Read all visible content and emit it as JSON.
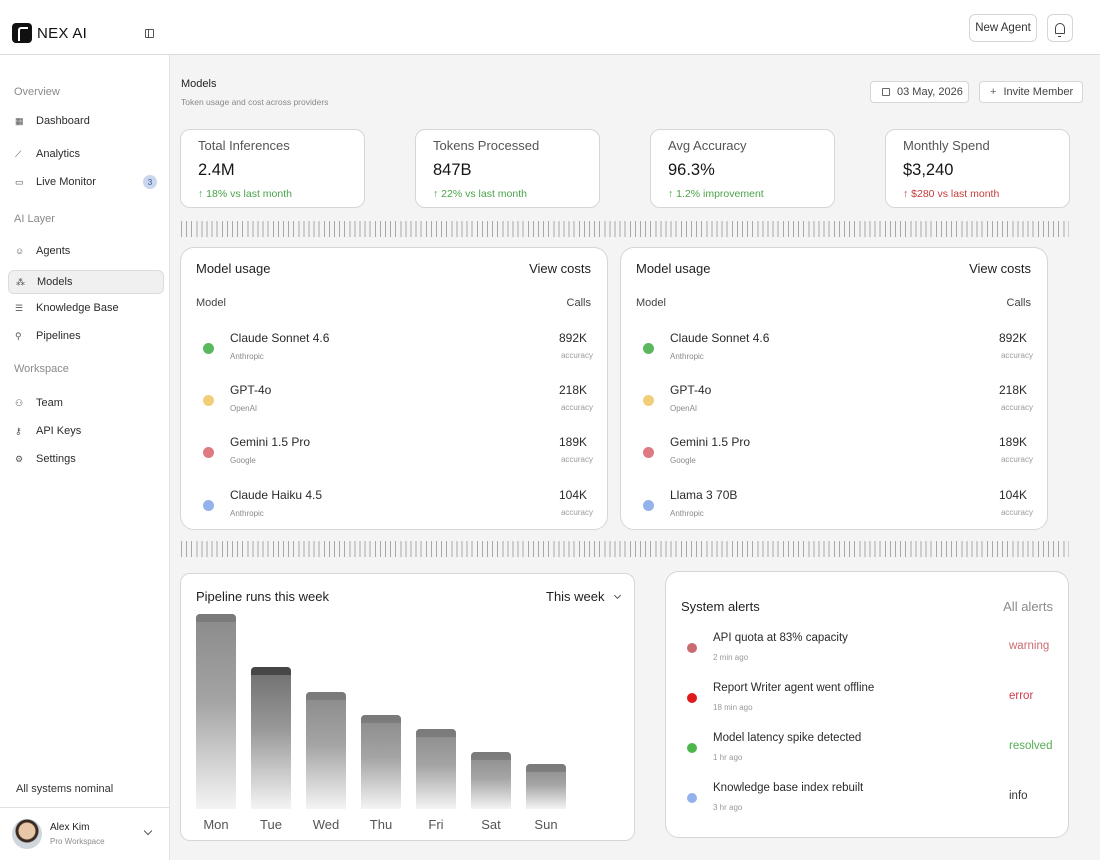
{
  "app": {
    "name": "NEX AI"
  },
  "topbar": {
    "new_agent": "New Agent"
  },
  "sidebar": {
    "sections": [
      {
        "label": "Overview"
      },
      {
        "label": "AI Layer"
      },
      {
        "label": "Workspace"
      }
    ],
    "items": [
      {
        "label": "Dashboard",
        "icon": "grid-icon"
      },
      {
        "label": "Analytics",
        "icon": "chart-line-icon"
      },
      {
        "label": "Live Monitor",
        "icon": "monitor-icon",
        "badge": "3"
      },
      {
        "label": "Agents",
        "icon": "agent-icon"
      },
      {
        "label": "Models",
        "icon": "models-icon"
      },
      {
        "label": "Knowledge Base",
        "icon": "database-icon"
      },
      {
        "label": "Pipelines",
        "icon": "pipeline-icon"
      },
      {
        "label": "Team",
        "icon": "team-icon"
      },
      {
        "label": "API Keys",
        "icon": "key-icon"
      },
      {
        "label": "Settings",
        "icon": "gear-icon"
      }
    ],
    "status": "All systems nominal",
    "user": {
      "name": "Alex Kim",
      "workspace": "Pro Workspace"
    }
  },
  "page": {
    "title": "Models",
    "subtitle": "Token usage and cost across providers",
    "date": "03 May, 2026",
    "invite": "Invite Member"
  },
  "stats": [
    {
      "label": "Total Inferences",
      "value": "2.4M",
      "delta": "↑ 18% vs last month",
      "trend": "up"
    },
    {
      "label": "Tokens Processed",
      "value": "847B",
      "delta": "↑ 22% vs last month",
      "trend": "up"
    },
    {
      "label": "Avg Accuracy",
      "value": "96.3%",
      "delta": "↑ 1.2% improvement",
      "trend": "up"
    },
    {
      "label": "Monthly Spend",
      "value": "$3,240",
      "delta": "↑ $280 vs last month",
      "trend": "down"
    }
  ],
  "usage_cards": [
    {
      "title": "Model usage",
      "link": "View costs",
      "col_model": "Model",
      "col_calls": "Calls",
      "rows": [
        {
          "name": "Claude Sonnet 4.6",
          "provider": "Anthropic",
          "calls": "892K",
          "acc": "accuracy",
          "color": "#5cb85c"
        },
        {
          "name": "GPT-4o",
          "provider": "OpenAI",
          "calls": "218K",
          "acc": "accuracy",
          "color": "#f0cf78"
        },
        {
          "name": "Gemini 1.5 Pro",
          "provider": "Google",
          "calls": "189K",
          "acc": "accuracy",
          "color": "#de7a82"
        },
        {
          "name": "Claude Haiku 4.5",
          "provider": "Anthropic",
          "calls": "104K",
          "acc": "accuracy",
          "color": "#93b1ea"
        }
      ]
    },
    {
      "title": "Model usage",
      "link": "View costs",
      "col_model": "Model",
      "col_calls": "Calls",
      "rows": [
        {
          "name": "Claude Sonnet 4.6",
          "provider": "Anthropic",
          "calls": "892K",
          "acc": "accuracy",
          "color": "#5cb85c"
        },
        {
          "name": "GPT-4o",
          "provider": "OpenAI",
          "calls": "218K",
          "acc": "accuracy",
          "color": "#f0cf78"
        },
        {
          "name": "Gemini 1.5 Pro",
          "provider": "Google",
          "calls": "189K",
          "acc": "accuracy",
          "color": "#de7a82"
        },
        {
          "name": "Llama 3 70B",
          "provider": "Anthropic",
          "calls": "104K",
          "acc": "accuracy",
          "color": "#93b1ea"
        }
      ]
    }
  ],
  "pipeline": {
    "title": "Pipeline runs this week",
    "filter": "This week",
    "chart_data": {
      "type": "bar",
      "categories": [
        "Mon",
        "Tue",
        "Wed",
        "Thu",
        "Fri",
        "Sat",
        "Sun"
      ],
      "values": [
        100,
        73,
        60,
        48,
        41,
        29,
        23
      ],
      "ylim": [
        0,
        100
      ],
      "highlight": "Tue"
    }
  },
  "alerts": {
    "title": "System alerts",
    "link": "All alerts",
    "items": [
      {
        "text": "API quota at 83% capacity",
        "time": "2 min ago",
        "status": "warning",
        "dot": "#c96b72",
        "status_color": "#c96b72"
      },
      {
        "text": "Report Writer agent went offline",
        "time": "18 min ago",
        "status": "error",
        "dot": "#e0191e",
        "status_color": "#d1394a"
      },
      {
        "text": "Model latency spike detected",
        "time": "1 hr ago",
        "status": "resolved",
        "dot": "#4cb84c",
        "status_color": "#55ad55"
      },
      {
        "text": "Knowledge base index rebuilt",
        "time": "3 hr ago",
        "status": "info",
        "dot": "#93b1ea",
        "status_color": "#333333"
      }
    ]
  }
}
